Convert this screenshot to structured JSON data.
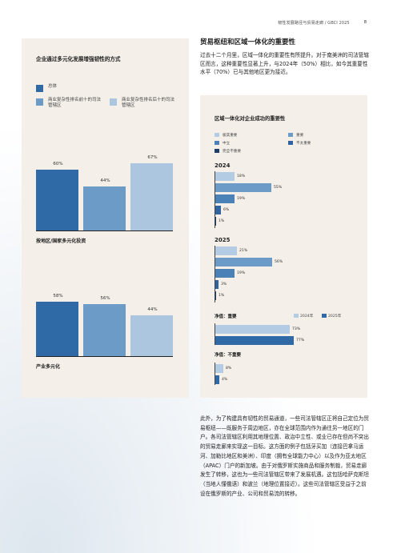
{
  "header": {
    "running_title": "韧性发展路径与贸易走廊 / GBCI 2025",
    "page_number": "8"
  },
  "left_panel": {
    "title": "企业通过多元化发展增强韧性的方式",
    "legend": [
      {
        "label": "总体",
        "color": "#2f6aa6"
      },
      {
        "label": "商业复杂性排名前十的司法管辖区",
        "color": "#6b9bc6"
      },
      {
        "label": "商业复杂性排名后十的司法管辖区",
        "color": "#adc6df"
      }
    ],
    "charts": [
      {
        "section_label": "按地区/国家多元化投资",
        "values": [
          "60%",
          "44%",
          "67%"
        ],
        "numbers": [
          60,
          44,
          67
        ]
      },
      {
        "section_label": "产业多元化",
        "values": [
          "58%",
          "56%",
          "44%"
        ],
        "numbers": [
          58,
          56,
          44
        ]
      }
    ]
  },
  "section_heading": "贸易枢纽和区域一体化的重要性",
  "intro_text": "过去十二个月里，区域一体化的重要性有所提升。对于南美洲的司法管辖区而言，这种重要性显著上升，与2024年（50%）相比，如今其重要性水平（70%）已与其他地区更为接近。",
  "right_panel": {
    "title": "区域一体化对企业成功的重要性",
    "legend": [
      {
        "label": "极其重要",
        "color": "#b3cbe3"
      },
      {
        "label": "重要",
        "color": "#6d9bc7"
      },
      {
        "label": "中立",
        "color": "#4a82b8"
      },
      {
        "label": "不太重要",
        "color": "#2f64a0"
      },
      {
        "label": "完全不重要",
        "color": "#1d3e6a"
      }
    ],
    "years": [
      {
        "year": "2024",
        "values": [
          "18%",
          "55%",
          "19%",
          "6%",
          "1%"
        ],
        "numbers": [
          18,
          55,
          19,
          6,
          1
        ]
      },
      {
        "year": "2025",
        "values": [
          "21%",
          "56%",
          "19%",
          "3%",
          "1%"
        ],
        "numbers": [
          21,
          56,
          19,
          3,
          1
        ]
      }
    ],
    "net_legend": [
      {
        "label": "2024年",
        "color": "#b3cbe3"
      },
      {
        "label": "2025年",
        "color": "#2f6aa6"
      }
    ],
    "net_important": {
      "label": "净值：重要",
      "values": [
        "73%",
        "77%"
      ],
      "numbers": [
        73,
        77
      ]
    },
    "net_unimportant": {
      "label": "净值：不重要",
      "values": [
        "8%",
        "4%"
      ],
      "numbers": [
        8,
        4
      ]
    }
  },
  "body_text": "此外，为了构建具有韧性的贸易通道，一些司法管辖区正将自己定位为贸易枢纽——既服务于周边地区，亦在全球范围内作为通往另一地区的门户。各司法管辖区利用其地理位置、政治中立性、或业已存在但尚不突出的贸易走廊来实现这一目标。这方面的例子包括牙买加（连接巴拿马运河、加勒比地区和美洲）、印度（拥有全球能力中心）以及作为亚太地区（APAC）门户的新加坡。由于对俄罗斯实施商品和服务制裁，贸易走廊发生了转移，这也为一些司法管辖区带来了发展机遇。这包括哈萨克斯坦（当地人懂俄语）和波兰（地理位置接近）。这些司法管辖区受益于之前设在俄罗斯的产业、公司和贸易流的转移。"
}
